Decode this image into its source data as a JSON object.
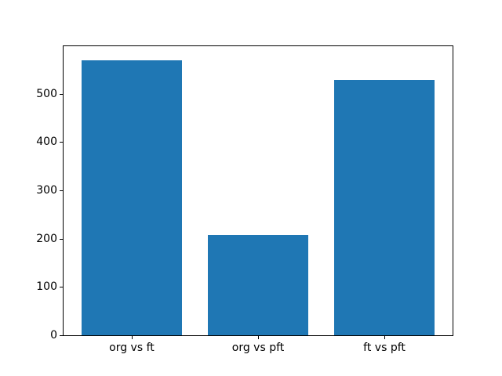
{
  "chart_data": {
    "type": "bar",
    "categories": [
      "org vs ft",
      "org vs pft",
      "ft vs pft"
    ],
    "values": [
      570,
      208,
      529
    ],
    "title": "",
    "xlabel": "",
    "ylabel": "",
    "ylim": [
      0,
      598.5
    ],
    "yticks": [
      0,
      100,
      200,
      300,
      400,
      500
    ],
    "bar_color": "#1f77b4",
    "bar_width_fraction": 0.8,
    "x_pad": 0.54,
    "grid": false,
    "legend_position": "none",
    "background_color": "#ffffff",
    "spine_color": "#000000",
    "tick_label_color": "#000000"
  }
}
